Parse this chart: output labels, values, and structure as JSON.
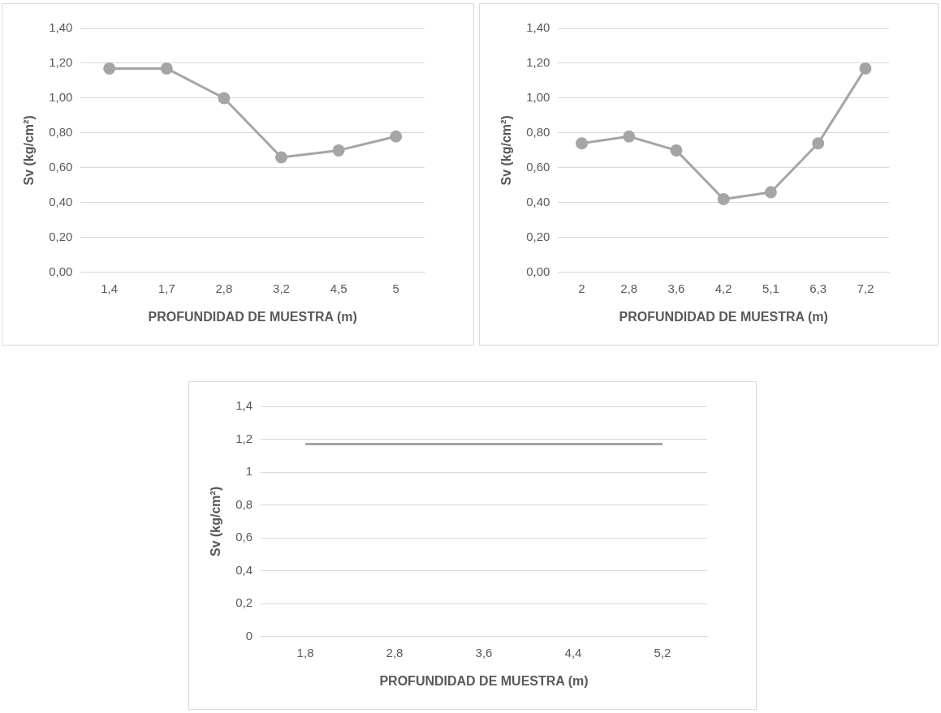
{
  "chart_data": [
    {
      "type": "line",
      "xlabel": "PROFUNDIDAD DE MUESTRA (m)",
      "ylabel": "Sv (kg/cm²)",
      "categories": [
        "1,4",
        "1,7",
        "2,8",
        "3,2",
        "4,5",
        "5"
      ],
      "series": [
        {
          "color": "#a5a5a5",
          "values": [
            1.17,
            1.17,
            1.0,
            0.66,
            0.7,
            0.78
          ]
        }
      ],
      "ylim": [
        0,
        1.4
      ],
      "yticks": [
        {
          "value": 0,
          "label": "0,00"
        },
        {
          "value": 0.2,
          "label": "0,20"
        },
        {
          "value": 0.4,
          "label": "0,40"
        },
        {
          "value": 0.6,
          "label": "0,60"
        },
        {
          "value": 0.8,
          "label": "0,80"
        },
        {
          "value": 1.0,
          "label": "1,00"
        },
        {
          "value": 1.2,
          "label": "1,20"
        },
        {
          "value": 1.4,
          "label": "1,40"
        }
      ],
      "grid": "y",
      "legend": false,
      "marker": "circle",
      "line_style": "solid"
    },
    {
      "type": "line",
      "xlabel": "PROFUNDIDAD DE MUESTRA (m)",
      "ylabel": "Sv (kg/cm²)",
      "categories": [
        "2",
        "2,8",
        "3,6",
        "4,2",
        "5,1",
        "6,3",
        "7,2"
      ],
      "series": [
        {
          "color": "#a5a5a5",
          "values": [
            0.74,
            0.78,
            0.7,
            0.42,
            0.46,
            0.74,
            1.17
          ]
        }
      ],
      "ylim": [
        0,
        1.4
      ],
      "yticks": [
        {
          "value": 0,
          "label": "0,00"
        },
        {
          "value": 0.2,
          "label": "0,20"
        },
        {
          "value": 0.4,
          "label": "0,40"
        },
        {
          "value": 0.6,
          "label": "0,60"
        },
        {
          "value": 0.8,
          "label": "0,80"
        },
        {
          "value": 1.0,
          "label": "1,00"
        },
        {
          "value": 1.2,
          "label": "1,20"
        },
        {
          "value": 1.4,
          "label": "1,40"
        }
      ],
      "grid": "y",
      "legend": false,
      "marker": "circle",
      "line_style": "solid"
    },
    {
      "type": "line",
      "xlabel": "PROFUNDIDAD DE MUESTRA (m)",
      "ylabel": "Sv (kg/cm²)",
      "categories": [
        "1,8",
        "2,8",
        "3,6",
        "4,4",
        "5,2"
      ],
      "series": [
        {
          "color": "#a5a5a5",
          "values": [
            1.17,
            1.17,
            1.17,
            1.17,
            1.17
          ]
        }
      ],
      "ylim": [
        0,
        1.4
      ],
      "yticks": [
        0,
        {
          "value": 0.2,
          "label": "0,2"
        },
        {
          "value": 0.4,
          "label": "0,4"
        },
        {
          "value": 0.6,
          "label": "0,6"
        },
        {
          "value": 0.8,
          "label": "0,8"
        },
        1,
        {
          "value": 1.2,
          "label": "1,2"
        },
        {
          "value": 1.4,
          "label": "1,4"
        }
      ],
      "grid": "y",
      "legend": false,
      "marker": "none",
      "line_style": "solid"
    }
  ]
}
